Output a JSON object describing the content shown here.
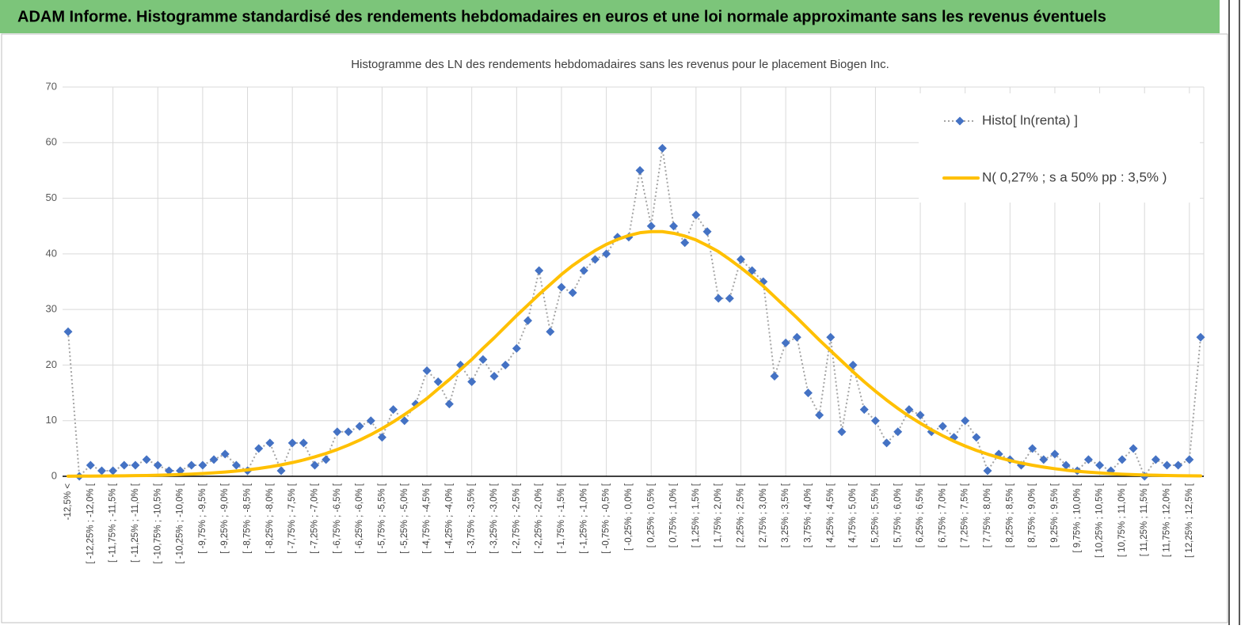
{
  "banner": {
    "title": "ADAM Informe. Histogramme standardisé des rendements hebdomadaires en euros et une loi normale approximante sans les revenus éventuels"
  },
  "chart_data": {
    "type": "line",
    "title": "Histogramme des LN des rendements hebdomadaires sans les revenus pour le placement Biogen Inc.",
    "categories": [
      "-12,5% <",
      null,
      "[ -12,25% ; -12,0% [",
      null,
      "[ -11,75% ; -11,5% [",
      null,
      "[ -11,25% ; -11,0% [",
      null,
      "[ -10,75% ; -10,5% [",
      null,
      "[ -10,25% ; -10,0% [",
      null,
      "[ -9,75% ; -9,5% [",
      null,
      "[ -9,25% ; -9,0% [",
      null,
      "[ -8,75% ; -8,5% [",
      null,
      "[ -8,25% ; -8,0% [",
      null,
      "[ -7,75% ; -7,5% [",
      null,
      "[ -7,25% ; -7,0% [",
      null,
      "[ -6,75% ; -6,5% [",
      null,
      "[ -6,25% ; -6,0% [",
      null,
      "[ -5,75% ; -5,5% [",
      null,
      "[ -5,25% ; -5,0% [",
      null,
      "[ -4,75% ; -4,5% [",
      null,
      "[ -4,25% ; -4,0% [",
      null,
      "[ -3,75% ; -3,5% [",
      null,
      "[ -3,25% ; -3,0% [",
      null,
      "[ -2,75% ; -2,5% [",
      null,
      "[ -2,25% ; -2,0% [",
      null,
      "[ -1,75% ; -1,5% [",
      null,
      "[ -1,25% ; -1,0% [",
      null,
      "[ -0,75% ; -0,5% [",
      null,
      "[ -0,25% ; 0,0% [",
      null,
      "[ 0,25% ; 0,5% [",
      null,
      "[ 0,75% ; 1,0% [",
      null,
      "[ 1,25% ; 1,5% [",
      null,
      "[ 1,75% ; 2,0% [",
      null,
      "[ 2,25% ; 2,5% [",
      null,
      "[ 2,75% ; 3,0% [",
      null,
      "[ 3,25% ; 3,5% [",
      null,
      "[ 3,75% ; 4,0% [",
      null,
      "[ 4,25% ; 4,5% [",
      null,
      "[ 4,75% ; 5,0% [",
      null,
      "[ 5,25% ; 5,5% [",
      null,
      "[ 5,75% ; 6,0% [",
      null,
      "[ 6,25% ; 6,5% [",
      null,
      "[ 6,75% ; 7,0% [",
      null,
      "[ 7,25% ; 7,5% [",
      null,
      "[ 7,75% ; 8,0% [",
      null,
      "[ 8,25% ; 8,5% [",
      null,
      "[ 8,75% ; 9,0% [",
      null,
      "[ 9,25% ; 9,5% [",
      null,
      "[ 9,75% ; 10,0% [",
      null,
      "[ 10,25% ; 10,5% [",
      null,
      "[ 10,75% ; 11,0% [",
      null,
      "[ 11,25% ; 11,5% [",
      null,
      "[ 11,75% ; 12,0% [",
      null,
      "[ 12,25% ; 12,5% [",
      null
    ],
    "series": [
      {
        "name": "Histo[ ln(renta) ]",
        "color": "#4472c4",
        "line_color": "#a5a5a5",
        "marker": "diamond",
        "values": [
          26,
          0,
          2,
          1,
          1,
          2,
          2,
          3,
          2,
          1,
          1,
          2,
          2,
          3,
          4,
          2,
          1,
          5,
          6,
          1,
          6,
          6,
          2,
          3,
          8,
          8,
          9,
          10,
          7,
          12,
          10,
          13,
          19,
          17,
          13,
          20,
          17,
          21,
          18,
          20,
          23,
          28,
          37,
          26,
          34,
          33,
          37,
          39,
          40,
          43,
          43,
          55,
          45,
          59,
          45,
          42,
          47,
          44,
          32,
          32,
          39,
          37,
          35,
          18,
          24,
          25,
          15,
          11,
          25,
          8,
          20,
          12,
          10,
          6,
          8,
          12,
          11,
          8,
          9,
          7,
          10,
          7,
          1,
          4,
          3,
          2,
          5,
          3,
          4,
          2,
          1,
          3,
          2,
          1,
          3,
          5,
          0,
          3,
          2,
          2,
          3,
          25
        ]
      },
      {
        "name": "N( 0,27% ; s a 50% pp : 3,5% )",
        "color": "#ffc000",
        "marker": "none",
        "values": [
          0.02,
          0.03,
          0.04,
          0.05,
          0.07,
          0.09,
          0.12,
          0.15,
          0.2,
          0.25,
          0.32,
          0.4,
          0.5,
          0.62,
          0.77,
          0.95,
          1.16,
          1.41,
          1.71,
          2.06,
          2.47,
          2.94,
          3.49,
          4.11,
          4.81,
          5.61,
          6.5,
          7.49,
          8.59,
          9.79,
          11.1,
          12.5,
          14.0,
          15.7,
          17.4,
          19.2,
          21.0,
          23.0,
          24.9,
          26.9,
          28.9,
          30.8,
          32.7,
          34.5,
          36.3,
          37.9,
          39.3,
          40.6,
          41.7,
          42.6,
          43.3,
          43.8,
          44.0,
          44.0,
          43.7,
          43.2,
          42.5,
          41.5,
          40.4,
          39.0,
          37.5,
          35.9,
          34.2,
          32.3,
          30.4,
          28.5,
          26.5,
          24.5,
          22.6,
          20.7,
          18.8,
          17.0,
          15.3,
          13.7,
          12.2,
          10.8,
          9.55,
          8.36,
          7.29,
          6.31,
          5.44,
          4.66,
          3.98,
          3.37,
          2.84,
          2.38,
          1.99,
          1.65,
          1.36,
          1.11,
          0.91,
          0.74,
          0.6,
          0.48,
          0.38,
          0.3,
          0.24,
          0.19,
          0.15,
          0.11,
          0.09,
          0.07
        ]
      }
    ],
    "ylim": [
      0,
      70
    ],
    "yticks": [
      0,
      10,
      20,
      30,
      40,
      50,
      60,
      70
    ],
    "grid": true,
    "legend": "top-right"
  }
}
